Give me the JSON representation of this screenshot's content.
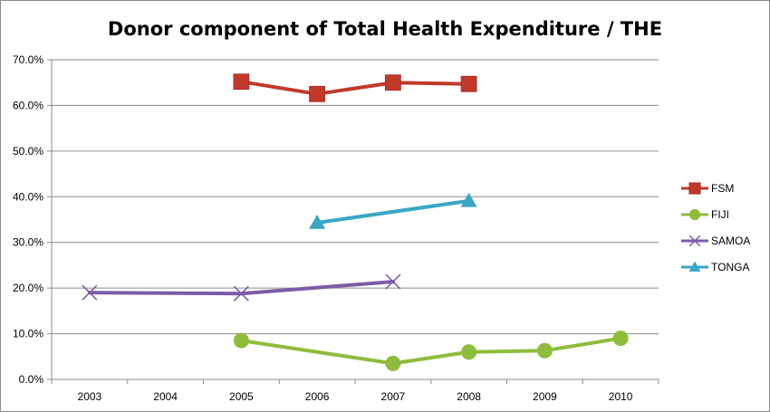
{
  "chart_data": {
    "type": "line",
    "title": "Donor component of Total Health Expenditure / THE",
    "xlabel": "",
    "ylabel": "",
    "categories": [
      "2003",
      "2004",
      "2005",
      "2006",
      "2007",
      "2008",
      "2009",
      "2010"
    ],
    "y_ticks": [
      "0.0%",
      "10.0%",
      "20.0%",
      "30.0%",
      "40.0%",
      "50.0%",
      "60.0%",
      "70.0%"
    ],
    "ylim": [
      0,
      70
    ],
    "grid": "horizontal",
    "legend_position": "right",
    "series": [
      {
        "name": "FSM",
        "color": "#c0392b",
        "marker": "square",
        "values": [
          null,
          null,
          65.2,
          62.5,
          65.0,
          64.7,
          null,
          null
        ]
      },
      {
        "name": "FIJI",
        "color": "#8fbc3c",
        "marker": "circle",
        "values": [
          null,
          null,
          8.5,
          null,
          3.5,
          6.0,
          6.3,
          9.0
        ]
      },
      {
        "name": "SAMOA",
        "color": "#7d5ba6",
        "marker": "x",
        "values": [
          19.0,
          null,
          18.8,
          null,
          21.4,
          null,
          null,
          null
        ]
      },
      {
        "name": "TONGA",
        "color": "#3aa6c5",
        "marker": "triangle",
        "values": [
          null,
          null,
          null,
          34.3,
          null,
          39.1,
          null,
          null
        ]
      }
    ]
  }
}
